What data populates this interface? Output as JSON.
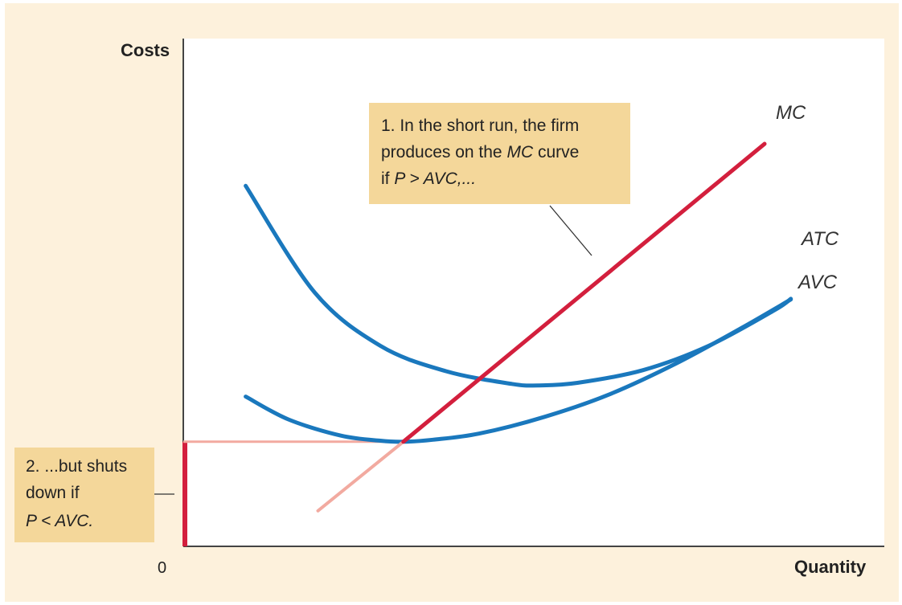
{
  "colors": {
    "background": "#fdf1dc",
    "plot_area": "#ffffff",
    "mc_active": "#d31f3d",
    "mc_inactive": "#f2aaa0",
    "cost_curves": "#1a78bd",
    "callout_fill": "#f4d79a",
    "axis": "#444444"
  },
  "chart_data": {
    "type": "line",
    "title": "",
    "xlabel": "Quantity",
    "ylabel": "Costs",
    "origin_label": "0",
    "xlim": [
      0,
      100
    ],
    "ylim": [
      0,
      100
    ],
    "grid": false,
    "series": [
      {
        "name": "MC",
        "segments": [
          {
            "style": "shutdown",
            "x": [
              20.5,
              33.5
            ],
            "y": [
              7,
              20.6
            ]
          },
          {
            "style": "supply",
            "x": [
              33.5,
              99.5
            ],
            "y": [
              20.6,
              91
            ]
          }
        ]
      },
      {
        "name": "ATC",
        "x": [
          9.5,
          20,
          30,
          40,
          50,
          54,
          60,
          70,
          80,
          90,
          105
        ],
        "y": [
          71,
          50,
          39.5,
          34.5,
          32,
          31.7,
          32.2,
          34.7,
          39.5,
          46.5,
          60
        ]
      },
      {
        "name": "AVC",
        "x": [
          9.5,
          16,
          24,
          30,
          33.5,
          38,
          45,
          55,
          65,
          75,
          85,
          95,
          105
        ],
        "y": [
          29.5,
          25,
          21.8,
          20.8,
          20.6,
          21,
          22.2,
          25.5,
          30,
          36,
          43,
          50.5,
          53
        ]
      }
    ],
    "annotations": {
      "short_run": "1. In the short run, the firm produces on the MC curve if P > AVC,...",
      "shut_down": "2. ...but shuts down if P < AVC."
    }
  },
  "callouts": {
    "short_run": {
      "line1": "1. In the short run, the firm",
      "line2_a": "produces on the ",
      "line2_b": "MC",
      "line2_c": " curve",
      "line3_a": "if ",
      "line3_b": "P > AVC,...",
      "line3_c": ""
    },
    "shut_down": {
      "line1": "2. ...but shuts",
      "line2": "down if",
      "line3": "P < AVC."
    }
  }
}
